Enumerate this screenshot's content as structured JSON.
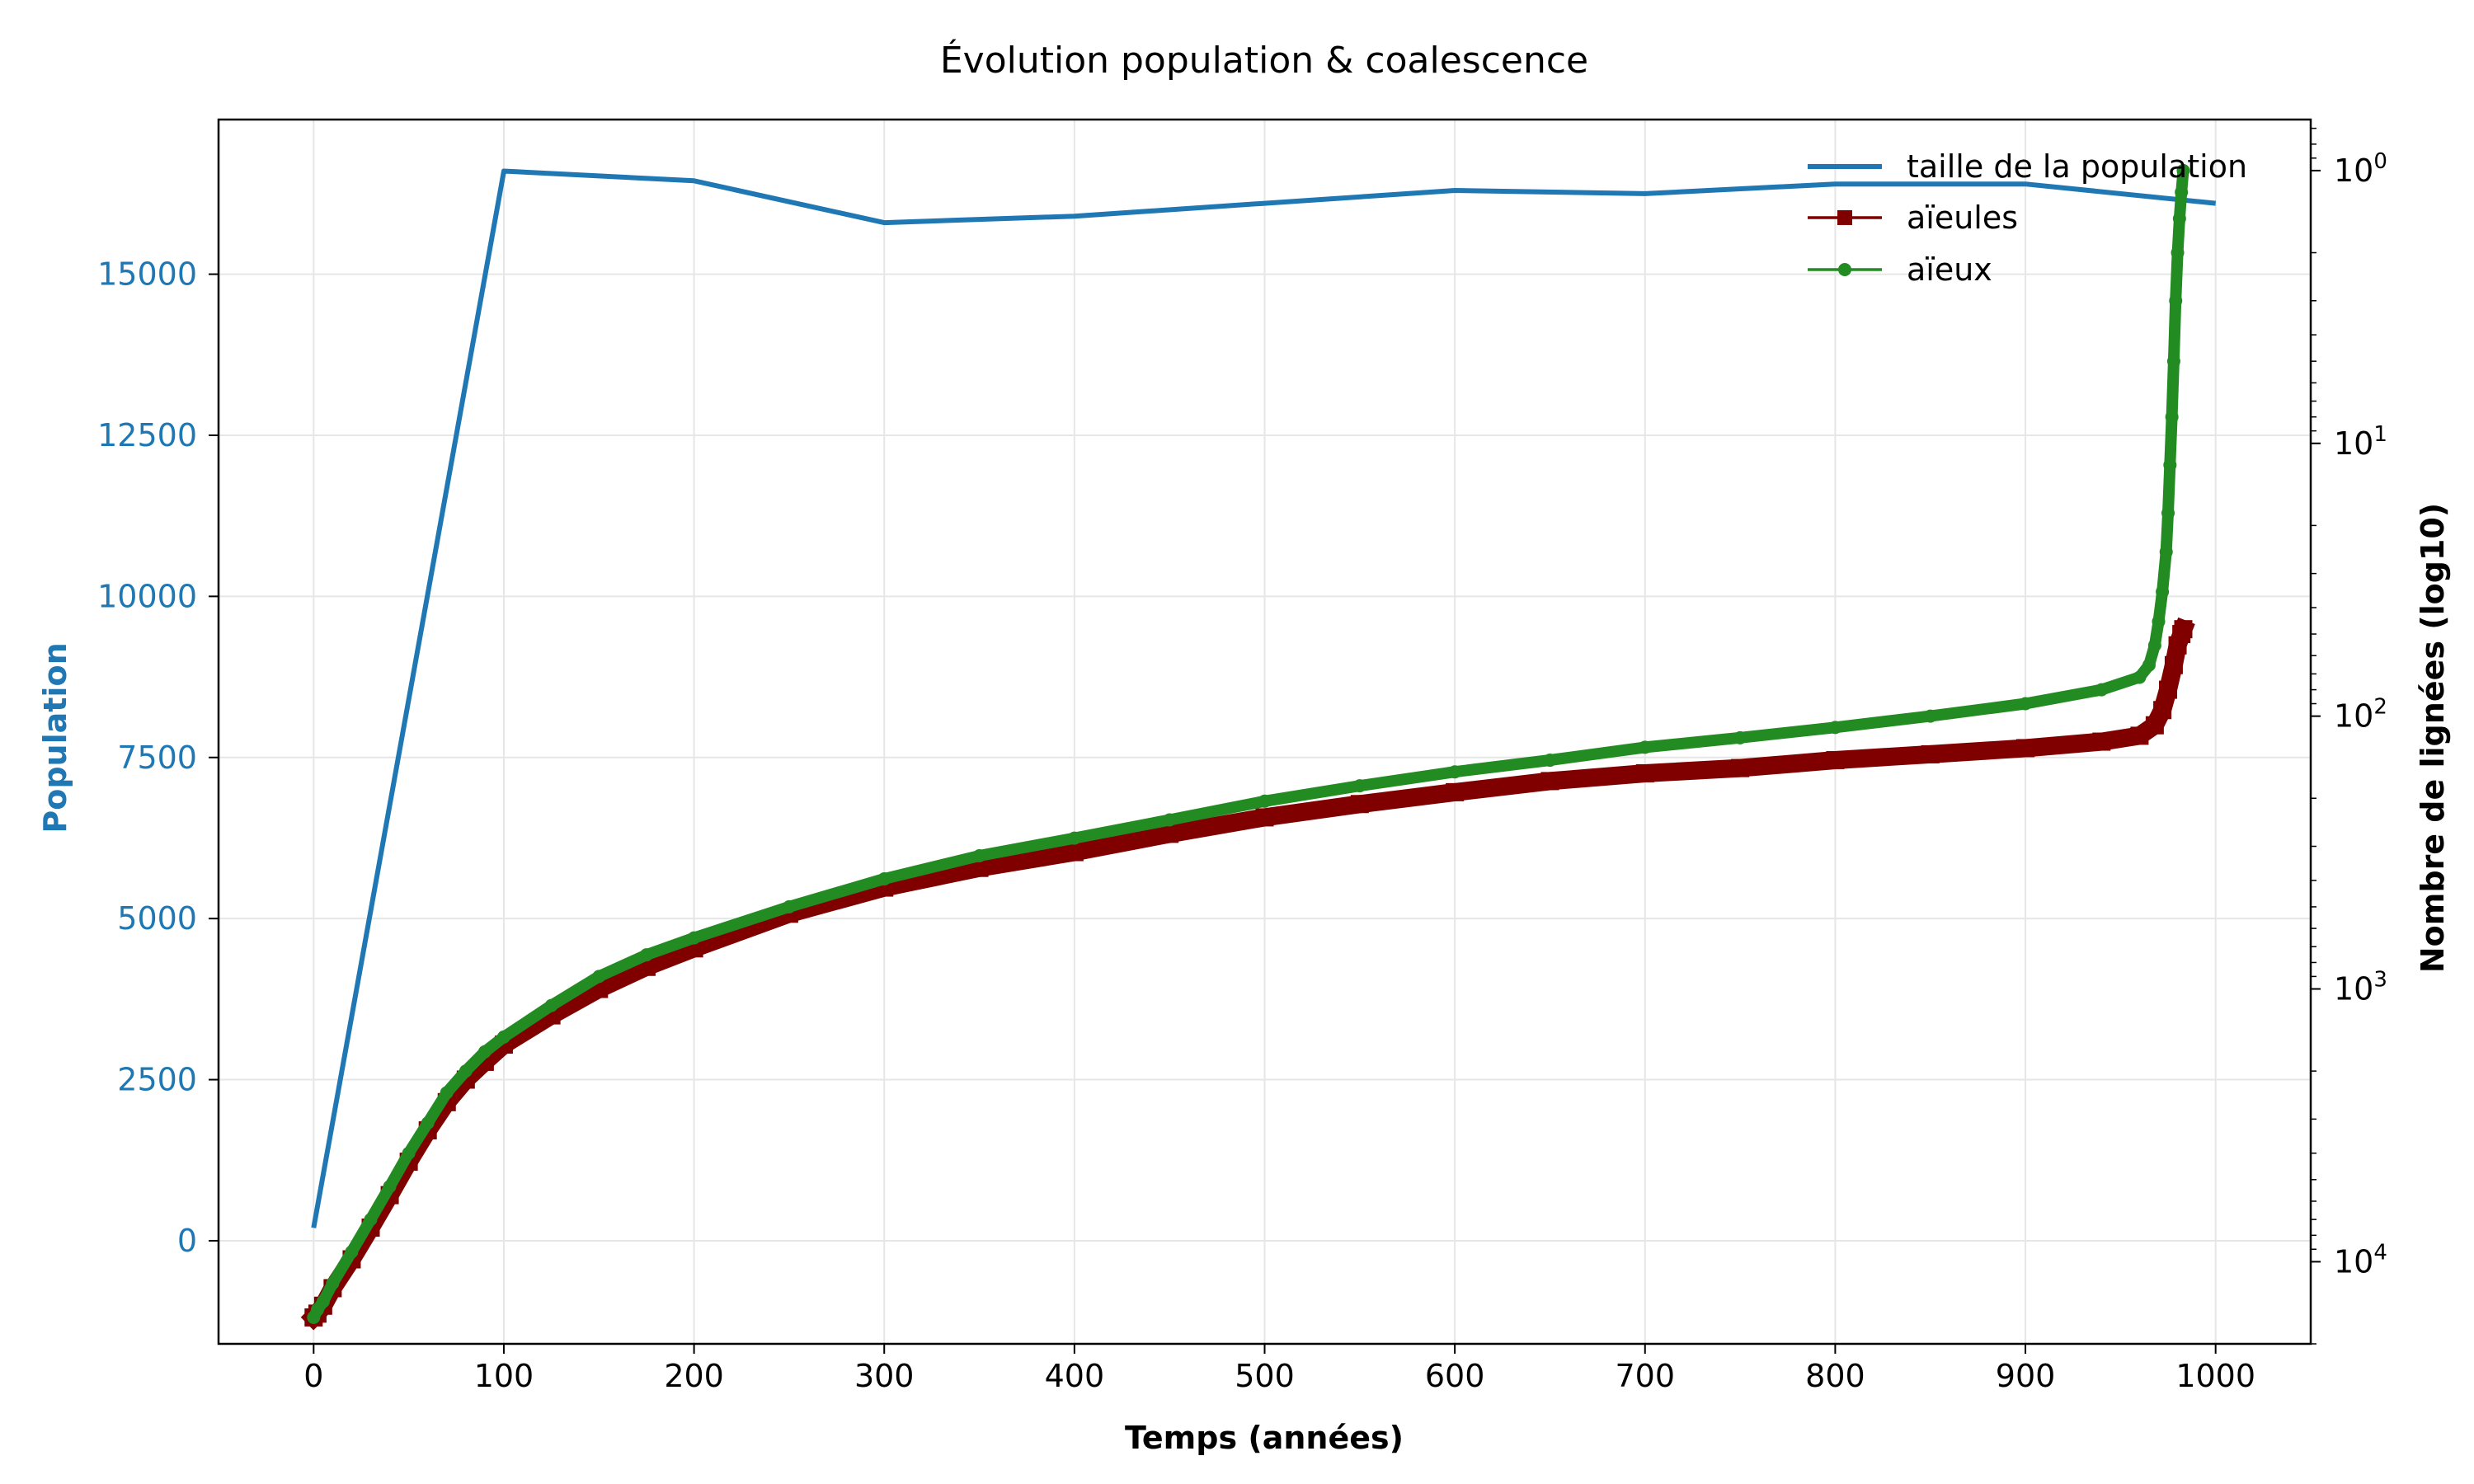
{
  "chart_data": {
    "type": "line",
    "title": "Évolution population & coalescence",
    "xlabel": "Temps (années)",
    "ylabel_left": "Population",
    "ylabel_right": "Nombre de lignées (log10)",
    "xlim": [
      -50,
      1050
    ],
    "ylim_left": [
      -1600,
      17400
    ],
    "ylim_right_log": [
      20000,
      0.65
    ],
    "right_axis_inverted": true,
    "right_axis_scale": "log",
    "grid": true,
    "legend_position": "top-right",
    "x_ticks": [
      0,
      100,
      200,
      300,
      400,
      500,
      600,
      700,
      800,
      900,
      1000
    ],
    "y_left_ticks": [
      0,
      2500,
      5000,
      7500,
      10000,
      12500,
      15000
    ],
    "y_right_ticks": [
      {
        "value": 1,
        "base": "10",
        "exp": "0"
      },
      {
        "value": 10,
        "base": "10",
        "exp": "1"
      },
      {
        "value": 100,
        "base": "10",
        "exp": "2"
      },
      {
        "value": 1000,
        "base": "10",
        "exp": "3"
      },
      {
        "value": 10000,
        "base": "10",
        "exp": "4"
      }
    ],
    "colors": {
      "population": "#1f77b4",
      "aieules": "#800000",
      "aieux": "#228b22",
      "left_axis_label": "#1f77b4"
    },
    "series": [
      {
        "name": "taille de la population",
        "axis": "left",
        "marker": "none",
        "x": [
          0,
          100,
          200,
          300,
          400,
          500,
          600,
          700,
          800,
          900,
          1000
        ],
        "values": [
          200,
          16600,
          16450,
          15800,
          15900,
          16100,
          16300,
          16250,
          16400,
          16400,
          16100
        ]
      },
      {
        "name": "aïeules",
        "axis": "right",
        "marker": "square",
        "x": [
          0,
          2,
          5,
          10,
          20,
          30,
          40,
          50,
          60,
          70,
          80,
          90,
          100,
          125,
          150,
          175,
          200,
          250,
          300,
          350,
          400,
          450,
          500,
          550,
          600,
          650,
          700,
          750,
          800,
          850,
          900,
          940,
          960,
          968,
          972,
          975,
          978,
          980,
          982,
          983
        ],
        "values": [
          16000,
          15500,
          14500,
          12500,
          9800,
          7500,
          5700,
          4300,
          3300,
          2600,
          2150,
          1850,
          1600,
          1250,
          1000,
          830,
          710,
          530,
          425,
          360,
          315,
          270,
          235,
          210,
          190,
          173,
          162,
          155,
          145,
          138,
          131,
          124,
          118,
          108,
          95,
          80,
          65,
          55,
          50,
          48
        ]
      },
      {
        "name": "aïeux",
        "axis": "right",
        "marker": "circle",
        "x": [
          0,
          2,
          5,
          10,
          20,
          30,
          40,
          50,
          60,
          70,
          80,
          90,
          100,
          125,
          150,
          175,
          200,
          250,
          300,
          350,
          400,
          450,
          500,
          550,
          600,
          650,
          700,
          750,
          800,
          850,
          900,
          940,
          960,
          965,
          968,
          970,
          972,
          974,
          975,
          976,
          977,
          978,
          979,
          980,
          981,
          982,
          983
        ],
        "values": [
          16000,
          15000,
          14000,
          12000,
          9200,
          7000,
          5300,
          4000,
          3100,
          2400,
          2000,
          1700,
          1500,
          1150,
          900,
          750,
          650,
          500,
          395,
          325,
          280,
          240,
          205,
          180,
          160,
          145,
          130,
          120,
          110,
          100,
          90,
          80,
          72,
          65,
          55,
          45,
          35,
          25,
          18,
          12,
          8,
          5,
          3,
          2,
          1.5,
          1.2,
          1.0
        ]
      }
    ]
  }
}
